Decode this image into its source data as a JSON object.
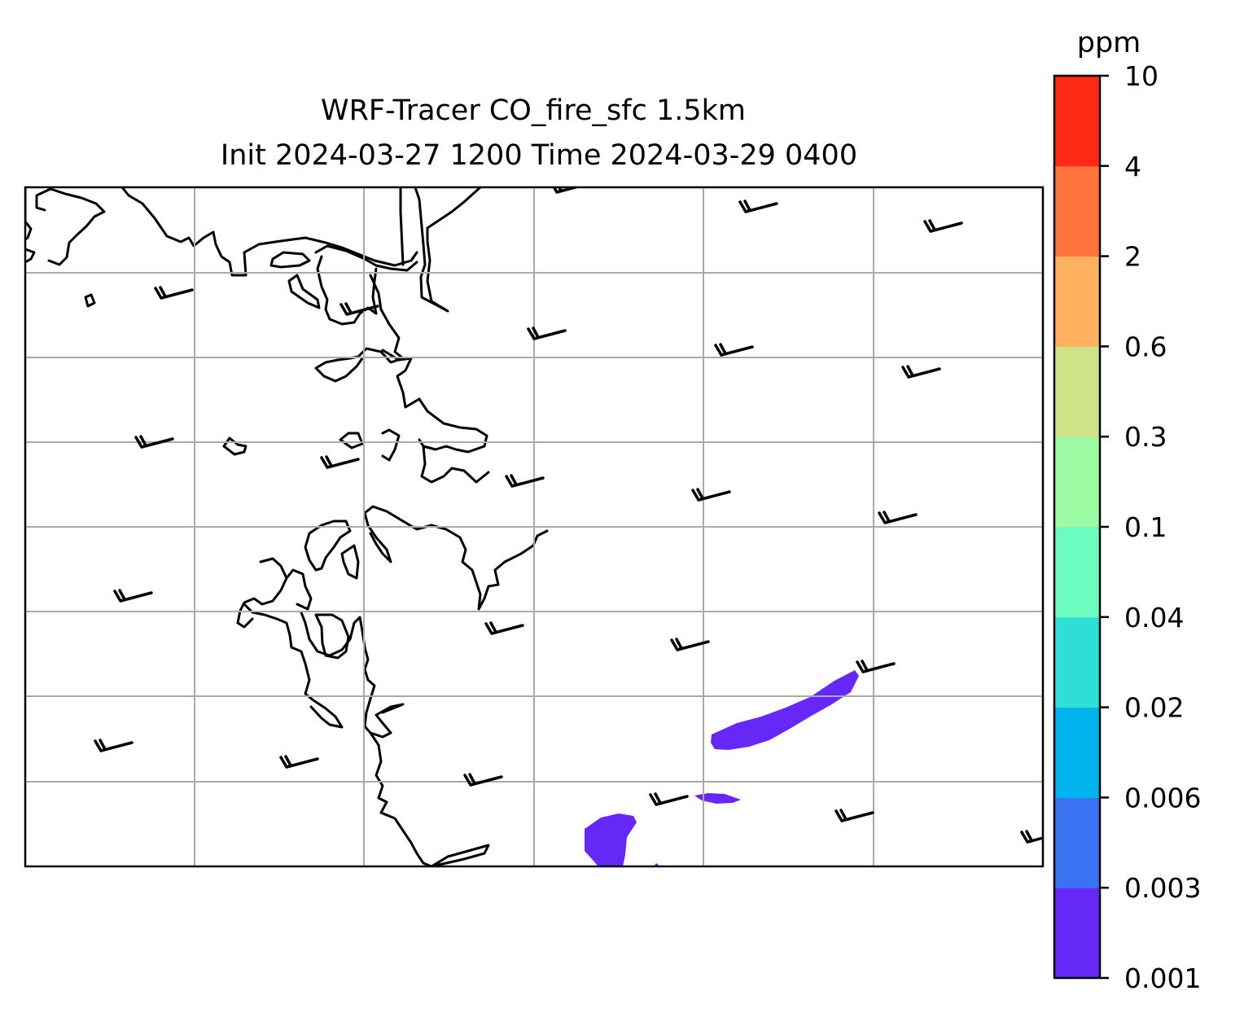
{
  "title": {
    "line1": "WRF-Tracer CO_fire_sfc 1.5km",
    "line2": "Init 2024-03-27 1200 Time 2024-03-29 0400"
  },
  "colorbar": {
    "unit": "ppm",
    "levels": [
      "0.001",
      "0.003",
      "0.006",
      "0.02",
      "0.04",
      "0.1",
      "0.3",
      "0.6",
      "2",
      "4",
      "10"
    ],
    "colors": [
      "#6528f7",
      "#3a73f2",
      "#01b3ec",
      "#2fdfd7",
      "#6bfcc0",
      "#9cfba2",
      "#cfe389",
      "#ffb15f",
      "#ff733c",
      "#ff2a16"
    ]
  },
  "map": {
    "gridlines": "on",
    "grid_color": "#aaaaaa",
    "coastline_color": "#000000",
    "wind_barbs": "black",
    "plume_level": "0.001"
  }
}
